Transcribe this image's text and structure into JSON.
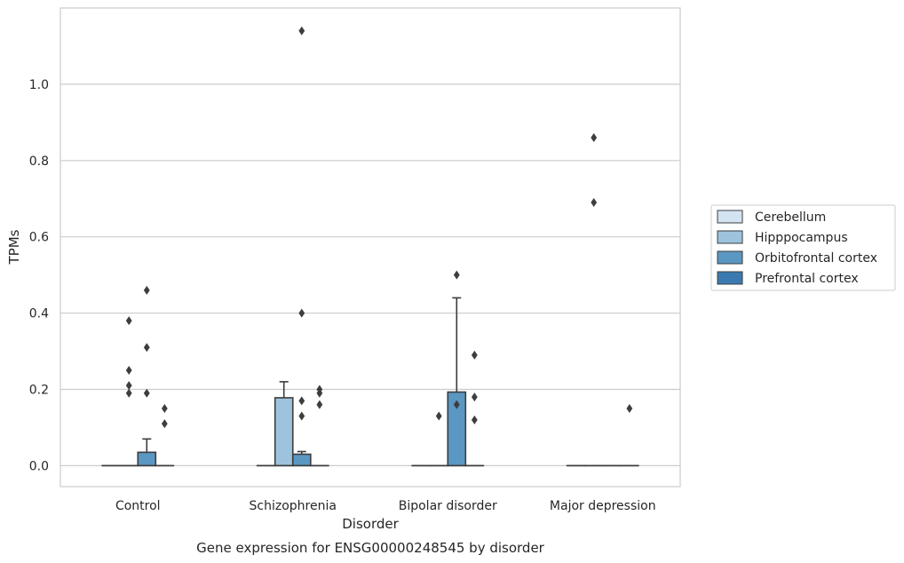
{
  "chart_data": {
    "type": "box",
    "caption": "Gene expression for ENSG00000248545 by disorder",
    "xlabel": "Disorder",
    "ylabel": "TPMs",
    "ylim": [
      -0.055,
      1.2
    ],
    "yticks": [
      0.0,
      0.2,
      0.4,
      0.6,
      0.8,
      1.0
    ],
    "ytick_labels": [
      "0.0",
      "0.2",
      "0.4",
      "0.6",
      "0.8",
      "1.0"
    ],
    "grid": "horizontal",
    "legend_position": "right",
    "categories": [
      "Control",
      "Schizophrenia",
      "Bipolar disorder",
      "Major depression"
    ],
    "series": [
      {
        "name": "Cerebellum",
        "color": "#d4e3f2",
        "boxes": [
          {
            "q1": 0,
            "median": 0,
            "q3": 0,
            "whisker_low": 0,
            "whisker_high": 0,
            "outliers": []
          },
          {
            "q1": 0,
            "median": 0,
            "q3": 0,
            "whisker_low": 0,
            "whisker_high": 0,
            "outliers": []
          },
          {
            "q1": 0,
            "median": 0,
            "q3": 0,
            "whisker_low": 0,
            "whisker_high": 0,
            "outliers": []
          },
          {
            "q1": 0,
            "median": 0,
            "q3": 0,
            "whisker_low": 0,
            "whisker_high": 0,
            "outliers": []
          }
        ]
      },
      {
        "name": "Hipppocampus",
        "color": "#9dc3dd",
        "boxes": [
          {
            "q1": 0,
            "median": 0,
            "q3": 0,
            "whisker_low": 0,
            "whisker_high": 0,
            "outliers": [
              0.19,
              0.38,
              0.25,
              0.21
            ]
          },
          {
            "q1": 0,
            "median": 0,
            "q3": 0.178,
            "whisker_low": 0,
            "whisker_high": 0.22,
            "outliers": []
          },
          {
            "q1": 0,
            "median": 0,
            "q3": 0,
            "whisker_low": 0,
            "whisker_high": 0,
            "outliers": [
              0.13
            ]
          },
          {
            "q1": 0,
            "median": 0,
            "q3": 0,
            "whisker_low": 0,
            "whisker_high": 0,
            "outliers": [
              0.86,
              0.69
            ]
          }
        ]
      },
      {
        "name": "Orbitofrontal cortex",
        "color": "#5a97c2",
        "boxes": [
          {
            "q1": 0,
            "median": 0,
            "q3": 0.035,
            "whisker_low": 0,
            "whisker_high": 0.07,
            "outliers": [
              0.46,
              0.31,
              0.19
            ]
          },
          {
            "q1": 0,
            "median": 0,
            "q3": 0.03,
            "whisker_low": 0,
            "whisker_high": 0.037,
            "outliers": [
              1.14,
              0.4,
              0.17,
              0.13
            ]
          },
          {
            "q1": 0,
            "median": 0,
            "q3": 0.193,
            "whisker_low": 0,
            "whisker_high": 0.44,
            "outliers": [
              0.5,
              0.16
            ]
          },
          {
            "q1": 0,
            "median": 0,
            "q3": 0,
            "whisker_low": 0,
            "whisker_high": 0,
            "outliers": []
          }
        ]
      },
      {
        "name": "Prefrontal cortex",
        "color": "#3a7ab0",
        "boxes": [
          {
            "q1": 0,
            "median": 0,
            "q3": 0,
            "whisker_low": 0,
            "whisker_high": 0,
            "outliers": [
              0.15,
              0.11
            ]
          },
          {
            "q1": 0,
            "median": 0,
            "q3": 0,
            "whisker_low": 0,
            "whisker_high": 0,
            "outliers": [
              0.2,
              0.19,
              0.16
            ]
          },
          {
            "q1": 0,
            "median": 0,
            "q3": 0,
            "whisker_low": 0,
            "whisker_high": 0,
            "outliers": [
              0.29,
              0.18,
              0.12
            ]
          },
          {
            "q1": 0,
            "median": 0,
            "q3": 0,
            "whisker_low": 0,
            "whisker_high": 0,
            "outliers": [
              0.15
            ]
          }
        ]
      }
    ]
  }
}
